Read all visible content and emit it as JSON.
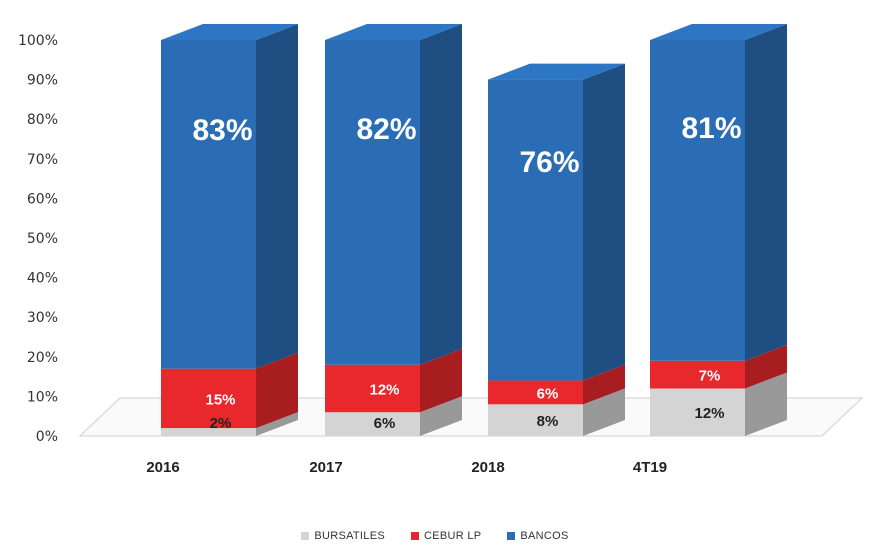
{
  "chart_data": {
    "type": "bar",
    "stacked": true,
    "three_d": true,
    "categories": [
      "2016",
      "2017",
      "2018",
      "4T19"
    ],
    "series": [
      {
        "name": "BURSATILES",
        "color": "#d4d4d4",
        "values": [
          2,
          6,
          8,
          12
        ]
      },
      {
        "name": "CEBUR LP",
        "color": "#e8282c",
        "values": [
          15,
          12,
          6,
          7
        ]
      },
      {
        "name": "BANCOS",
        "color": "#2a6db5",
        "values": [
          83,
          82,
          76,
          81
        ]
      }
    ],
    "data_labels": [
      [
        "2%",
        "15%",
        "83%"
      ],
      [
        "6%",
        "12%",
        "82%"
      ],
      [
        "8%",
        "6%",
        "76%"
      ],
      [
        "12%",
        "7%",
        "81%"
      ]
    ],
    "y_ticks": [
      "0%",
      "10%",
      "20%",
      "30%",
      "40%",
      "50%",
      "60%",
      "70%",
      "80%",
      "90%",
      "100%"
    ],
    "ylim": [
      0,
      100
    ],
    "grid": false,
    "legend": "bottom"
  }
}
